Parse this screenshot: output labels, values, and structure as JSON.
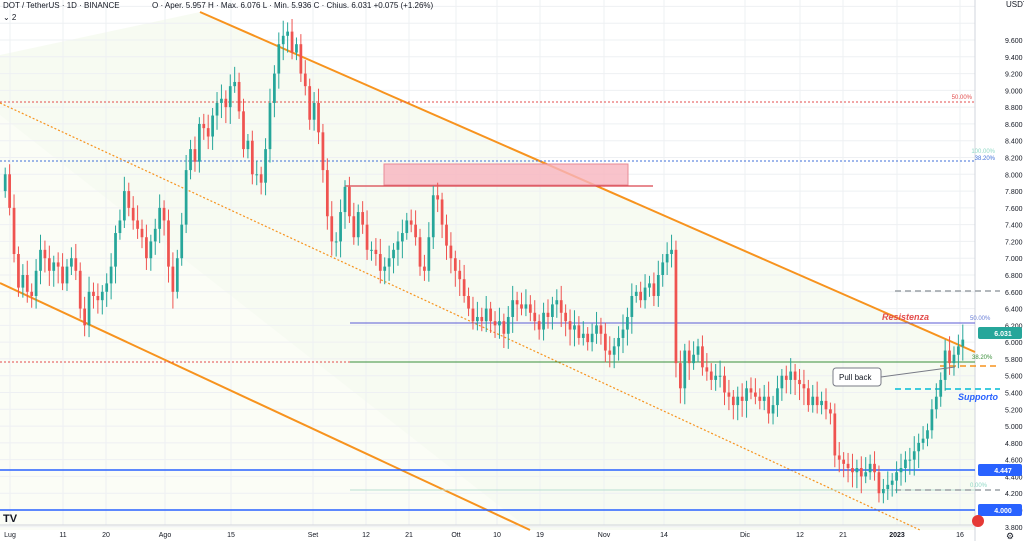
{
  "header": {
    "symbol": "DOT / TetherUS · 1D · BINANCE",
    "ohlc": "O · Aper. 5.957  H · Max. 6.076  L · Min. 5.936  C · Chius. 6.031  +0.075 (+1.26%)",
    "indicator_count": "2",
    "currency": "USDT ▾"
  },
  "colors": {
    "up": "#26a69a",
    "down": "#ef5350",
    "channel": "#f7931e",
    "resistance": "#5b5bd6",
    "support": "#2962ff",
    "zone": "#f8b4be",
    "fib_green": "#3a8f3a",
    "fib_red": "#e34c4c",
    "fib_blue": "#6a7fd8"
  },
  "chart_data": {
    "type": "candlestick",
    "ylim": [
      3.8,
      10.1
    ],
    "y_ticks": [
      "9.600",
      "9.400",
      "9.200",
      "9.000",
      "8.800",
      "8.600",
      "8.400",
      "8.200",
      "8.000",
      "7.800",
      "7.600",
      "7.400",
      "7.200",
      "7.000",
      "6.800",
      "6.600",
      "6.400",
      "6.200",
      "6.000",
      "5.800",
      "5.600",
      "5.400",
      "5.200",
      "5.000",
      "4.800",
      "4.600",
      "4.400",
      "4.200",
      "4.000",
      "3.800"
    ],
    "x_ticks": [
      "Lug",
      "11",
      "20",
      "Ago",
      "15",
      "Set",
      "12",
      "21",
      "Ott",
      "10",
      "19",
      "Nov",
      "14",
      "Dic",
      "12",
      "21",
      "2023",
      "16"
    ],
    "price_labels": {
      "last": "6.031",
      "level_4447": "4.447",
      "level_4000": "4.000"
    },
    "annotations": {
      "resistance": "Resistenza",
      "support": "Supporto",
      "pullback": "Pull back"
    },
    "fib_labels": {
      "f50": "50.00%",
      "f100": "100.00%",
      "f382": "38.20%",
      "f50b": "50.00%",
      "f382b": "38.20%",
      "f0": "0.00%"
    },
    "closes": [
      8.0,
      7.6,
      7.05,
      6.65,
      6.8,
      6.6,
      6.55,
      6.85,
      7.1,
      7.0,
      6.85,
      6.95,
      6.9,
      6.7,
      6.9,
      7.0,
      6.85,
      6.4,
      6.2,
      6.6,
      6.55,
      6.5,
      6.6,
      6.7,
      6.9,
      7.3,
      7.45,
      7.8,
      7.6,
      7.45,
      7.35,
      7.25,
      7.0,
      7.2,
      7.35,
      7.6,
      7.45,
      6.9,
      6.6,
      7.0,
      7.4,
      8.05,
      8.3,
      8.15,
      8.6,
      8.55,
      8.45,
      8.7,
      8.85,
      8.9,
      8.8,
      9.05,
      9.1,
      8.75,
      8.3,
      8.4,
      8.0,
      8.0,
      7.9,
      8.3,
      8.85,
      9.2,
      9.55,
      9.65,
      9.7,
      9.45,
      9.55,
      9.2,
      9.05,
      8.65,
      8.85,
      8.5,
      8.05,
      7.5,
      7.2,
      7.2,
      7.55,
      7.85,
      7.5,
      7.25,
      7.55,
      7.4,
      7.1,
      7.1,
      7.05,
      6.85,
      6.9,
      7.0,
      7.1,
      7.2,
      7.3,
      7.45,
      7.4,
      7.25,
      6.9,
      6.85,
      7.25,
      7.75,
      7.7,
      7.4,
      7.15,
      7.0,
      6.85,
      6.75,
      6.55,
      6.4,
      6.25,
      6.3,
      6.25,
      6.4,
      6.25,
      6.2,
      6.25,
      6.1,
      6.3,
      6.5,
      6.45,
      6.4,
      6.45,
      6.35,
      6.25,
      6.15,
      6.35,
      6.3,
      6.45,
      6.5,
      6.35,
      6.25,
      6.15,
      6.2,
      6.05,
      6.1,
      6.0,
      6.1,
      6.2,
      6.1,
      5.9,
      5.85,
      5.95,
      6.05,
      6.15,
      6.3,
      6.55,
      6.6,
      6.5,
      6.65,
      6.7,
      6.55,
      6.8,
      6.95,
      7.05,
      7.1,
      5.75,
      5.45,
      5.9,
      5.75,
      5.85,
      5.95,
      5.7,
      5.65,
      5.55,
      5.6,
      5.6,
      5.4,
      5.35,
      5.25,
      5.35,
      5.3,
      5.45,
      5.4,
      5.35,
      5.3,
      5.35,
      5.15,
      5.25,
      5.45,
      5.6,
      5.55,
      5.65,
      5.55,
      5.5,
      5.45,
      5.25,
      5.35,
      5.25,
      5.3,
      5.2,
      5.15,
      4.65,
      4.6,
      4.55,
      4.5,
      4.45,
      4.5,
      4.4,
      4.45,
      4.55,
      4.45,
      4.2,
      4.25,
      4.3,
      4.35,
      4.45,
      4.5,
      4.6,
      4.6,
      4.7,
      4.8,
      4.85,
      4.95,
      5.2,
      5.35,
      5.55,
      5.9,
      5.75,
      5.85,
      5.95,
      6.03
    ]
  }
}
